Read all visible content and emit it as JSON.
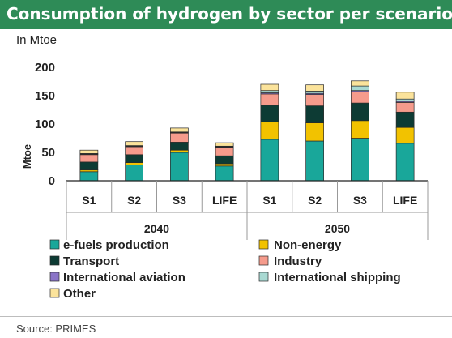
{
  "title": "Consumption of hydrogen by sector per scenario",
  "unit_label": "In Mtoe",
  "source": "Source: PRIMES",
  "chart_data": {
    "type": "bar",
    "stacked": true,
    "ylabel": "Mtoe",
    "ylim": [
      0,
      200
    ],
    "yticks": [
      0,
      50,
      100,
      150,
      200
    ],
    "groups": [
      {
        "label": "2040",
        "categories": [
          "S1",
          "S2",
          "S3",
          "LIFE"
        ]
      },
      {
        "label": "2050",
        "categories": [
          "S1",
          "S2",
          "S3",
          "LIFE"
        ]
      }
    ],
    "categories": [
      "S1",
      "S2",
      "S3",
      "LIFE",
      "S1",
      "S2",
      "S3",
      "LIFE"
    ],
    "series": [
      {
        "name": "e-fuels production",
        "color": "#19a79a",
        "values": [
          16,
          28,
          50,
          26,
          73,
          70,
          75,
          66
        ]
      },
      {
        "name": "Non-energy",
        "color": "#f2c200",
        "values": [
          3,
          4,
          4,
          4,
          31,
          32,
          31,
          28
        ]
      },
      {
        "name": "Transport",
        "color": "#0d3b34",
        "values": [
          14,
          14,
          14,
          14,
          29,
          30,
          31,
          27
        ]
      },
      {
        "name": "Industry",
        "color": "#f59b8c",
        "values": [
          13,
          14,
          16,
          15,
          20,
          20,
          20,
          17
        ]
      },
      {
        "name": "International aviation",
        "color": "#8a74c7",
        "values": [
          1,
          1,
          1,
          1,
          2,
          2,
          2,
          2
        ]
      },
      {
        "name": "International shipping",
        "color": "#a9d9d2",
        "values": [
          1,
          1,
          1,
          1,
          4,
          4,
          8,
          4
        ]
      },
      {
        "name": "Other",
        "color": "#fbe39b",
        "values": [
          6,
          7,
          7,
          6,
          11,
          11,
          9,
          12
        ]
      }
    ],
    "grid": false,
    "legend_placement": "bottom"
  }
}
